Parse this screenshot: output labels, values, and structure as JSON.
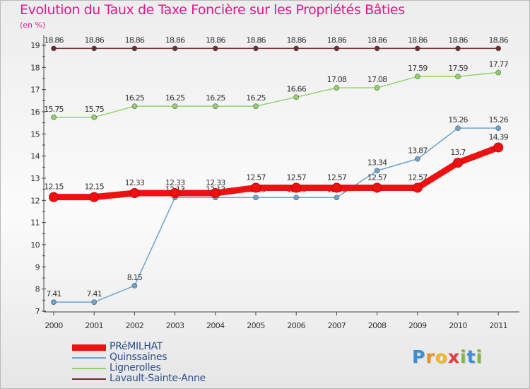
{
  "title": "Evolution du Taux de Taxe Foncière sur les Propriétés Bâties",
  "unit_label": "(en %)",
  "logo": {
    "text": "Proxiti",
    "letter_colors": [
      "#3a8fd6",
      "#e8932a",
      "#f0b82a",
      "#e83a3a",
      "#7bbd3a",
      "#3a8fd6",
      "#7bbd3a"
    ]
  },
  "chart_data": {
    "type": "line",
    "x": [
      "2000",
      "2001",
      "2002",
      "2003",
      "2004",
      "2005",
      "2006",
      "2007",
      "2008",
      "2009",
      "2010",
      "2011"
    ],
    "y_ticks": [
      "7",
      "8",
      "9",
      "10",
      "11",
      "12",
      "13",
      "14",
      "15",
      "16",
      "17",
      "18",
      "19"
    ],
    "ylim": [
      7,
      19
    ],
    "grid": false,
    "legend_position": "bottom-left",
    "series": [
      {
        "name": "Lavault-Sainte-Anne",
        "color": "#6b2d2d",
        "width": 1.5,
        "values": [
          18.86,
          18.86,
          18.86,
          18.86,
          18.86,
          18.86,
          18.86,
          18.86,
          18.86,
          18.86,
          18.86,
          18.86
        ],
        "labels": [
          "18.86",
          "18.86",
          "18.86",
          "18.86",
          "18.86",
          "18.86",
          "18.86",
          "18.86",
          "18.86",
          "18.86",
          "18.86",
          "18.86"
        ]
      },
      {
        "name": "Lignerolles",
        "color": "#8fd46a",
        "width": 1.5,
        "values": [
          15.75,
          15.75,
          16.25,
          16.25,
          16.25,
          16.25,
          16.66,
          17.08,
          17.08,
          17.59,
          17.59,
          17.77
        ],
        "labels": [
          "15.75",
          "15.75",
          "16.25",
          "16.25",
          "16.25",
          "16.25",
          "16.66",
          "17.08",
          "17.08",
          "17.59",
          "17.59",
          "17.77"
        ]
      },
      {
        "name": "Quinssaines",
        "color": "#6fa3d0",
        "width": 1.5,
        "values": [
          7.41,
          7.41,
          8.15,
          12.13,
          12.13,
          12.13,
          12.13,
          12.13,
          13.34,
          13.87,
          15.26,
          15.26
        ],
        "labels": [
          "7.41",
          "7.41",
          "8.15",
          "12.13",
          "12.13",
          "12.13",
          "12.13",
          "12.13",
          "13.34",
          "13.87",
          "15.26",
          "15.26"
        ]
      },
      {
        "name": "PRéMILHAT",
        "color": "#ee1111",
        "width": 9,
        "values": [
          12.15,
          12.15,
          12.33,
          12.33,
          12.33,
          12.57,
          12.57,
          12.57,
          12.57,
          12.57,
          13.7,
          14.39
        ],
        "labels": [
          "12.15",
          "12.15",
          "12.33",
          "12.33",
          "12.33",
          "12.57",
          "12.57",
          "12.57",
          "12.57",
          "12.57",
          "13.7",
          "14.39"
        ]
      }
    ],
    "legend": [
      {
        "name": "PRéMILHAT",
        "color": "#ee1111"
      },
      {
        "name": "Quinssaines",
        "color": "#6fa3d0"
      },
      {
        "name": "Lignerolles",
        "color": "#8fd46a"
      },
      {
        "name": "Lavault-Sainte-Anne",
        "color": "#6b2d2d"
      }
    ]
  }
}
